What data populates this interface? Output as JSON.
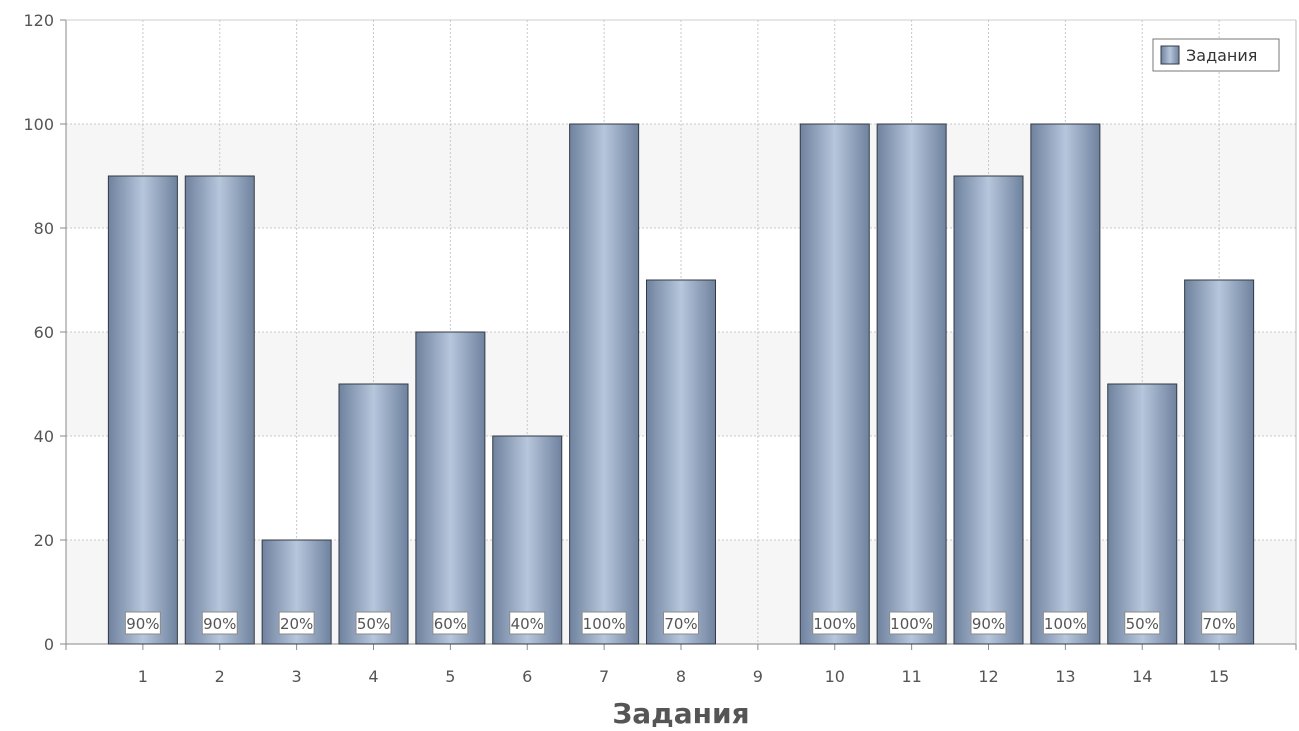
{
  "chart_data": {
    "type": "bar",
    "categories": [
      "1",
      "2",
      "3",
      "4",
      "5",
      "6",
      "7",
      "8",
      "9",
      "10",
      "11",
      "12",
      "13",
      "14",
      "15"
    ],
    "series": [
      {
        "name": "Задания",
        "values": [
          90,
          90,
          20,
          50,
          60,
          40,
          100,
          70,
          0,
          100,
          100,
          90,
          100,
          50,
          70
        ]
      }
    ],
    "data_labels": [
      "90%",
      "90%",
      "20%",
      "50%",
      "60%",
      "40%",
      "100%",
      "70%",
      "",
      "100%",
      "100%",
      "90%",
      "100%",
      "50%",
      "70%"
    ],
    "xlabel": "Задания",
    "ylabel": "",
    "ylim": [
      0,
      120
    ],
    "yticks": [
      0,
      20,
      40,
      60,
      80,
      100,
      120
    ],
    "grid": true,
    "legend_position": "top-right",
    "colors": {
      "bar_edge": "#6f829e",
      "bar_center": "#b6c6dc",
      "bar_stroke": "#333a44",
      "axis": "#8a8a8a",
      "grid": "#c8c8c8",
      "plot_band": "#f6f6f6"
    }
  }
}
